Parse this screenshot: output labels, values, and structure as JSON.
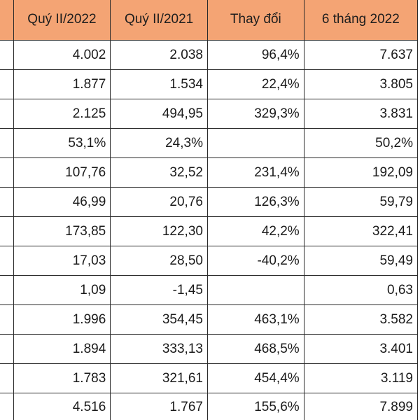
{
  "table": {
    "headers": [
      "",
      "Quý II/2022",
      "Quý II/2021",
      "Thay đổi",
      "6 tháng 2022"
    ],
    "rows": [
      [
        "",
        "4.002",
        "2.038",
        "96,4%",
        "7.637"
      ],
      [
        "",
        "1.877",
        "1.534",
        "22,4%",
        "3.805"
      ],
      [
        "",
        "2.125",
        "494,95",
        "329,3%",
        "3.831"
      ],
      [
        "",
        "53,1%",
        "24,3%",
        "",
        "50,2%"
      ],
      [
        "",
        "107,76",
        "32,52",
        "231,4%",
        "192,09"
      ],
      [
        "",
        "46,99",
        "20,76",
        "126,3%",
        "59,79"
      ],
      [
        "",
        "173,85",
        "122,30",
        "42,2%",
        "322,41"
      ],
      [
        "",
        "17,03",
        "28,50",
        "-40,2%",
        "59,49"
      ],
      [
        "",
        "1,09",
        "-1,45",
        "",
        "0,63"
      ],
      [
        "",
        "1.996",
        "354,45",
        "463,1%",
        "3.582"
      ],
      [
        "",
        "1.894",
        "333,13",
        "468,5%",
        "3.401"
      ],
      [
        "",
        "1.783",
        "321,61",
        "454,4%",
        "3.119"
      ],
      [
        "",
        "4.516",
        "1.767",
        "155,6%",
        "7.899"
      ]
    ]
  },
  "colors": {
    "header_background": "#f4a474",
    "border": "#2b2b2b"
  }
}
